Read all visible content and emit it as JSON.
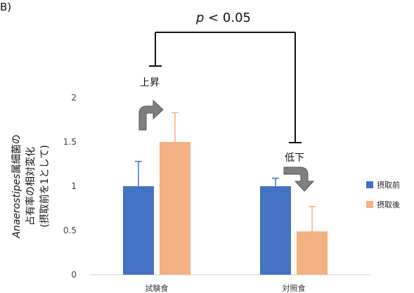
{
  "panel_label": "B)",
  "chart_data": {
    "type": "bar",
    "categories": [
      "試験食",
      "対照食"
    ],
    "series": [
      {
        "name": "摂取前",
        "values": [
          1,
          1
        ],
        "errors": [
          0.28,
          0.09
        ],
        "color": "#4472C4"
      },
      {
        "name": "摂取後",
        "values": [
          1.5,
          0.49
        ],
        "errors": [
          0.33,
          0.28
        ],
        "color": "#F4B183"
      }
    ],
    "ylim": [
      0,
      2
    ],
    "yticks": [
      "0",
      "0.5",
      "1",
      "1.5",
      "2"
    ],
    "ylabel_italic": "Anaerostipes",
    "ylabel_line1": "属細菌の",
    "ylabel_line2": "占有率の相対変化",
    "ylabel_line3": "(摂取前を1として)",
    "legend_position": "right",
    "grid": false
  },
  "annotations": {
    "significance_p": "p",
    "significance_rest": " < 0.05",
    "increase_label": "上昇",
    "decrease_label": "低下",
    "arrow_color": "#7F7F7F"
  }
}
